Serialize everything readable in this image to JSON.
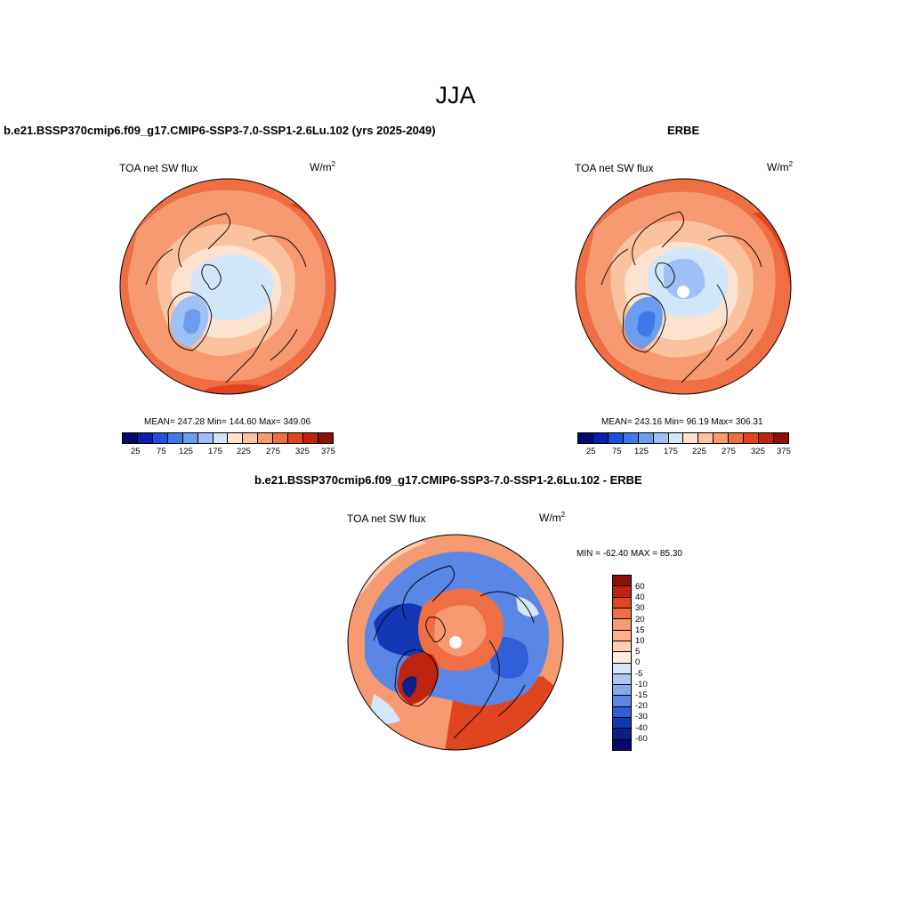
{
  "main_title": "JJA",
  "panels": [
    {
      "title": "b.e21.BSSP370cmip6.f09_g17.CMIP6-SSP3-7.0-SSP1-2.6Lu.102 (yrs 2025-2049)",
      "variable": "TOA net SW flux",
      "units_base": "W/m",
      "units_exp": "2",
      "stats": "MEAN= 247.28  Min= 144.60  Max= 349.06",
      "colorbar_ticks": [
        "25",
        "75",
        "125",
        "175",
        "225",
        "275",
        "325",
        "375"
      ]
    },
    {
      "title": "ERBE",
      "variable": "TOA net SW flux",
      "units_base": "W/m",
      "units_exp": "2",
      "stats": "MEAN= 243.16  Min=  96.19  Max= 306.31",
      "colorbar_ticks": [
        "25",
        "75",
        "125",
        "175",
        "225",
        "275",
        "325",
        "375"
      ]
    }
  ],
  "diff_panel": {
    "title": "b.e21.BSSP370cmip6.f09_g17.CMIP6-SSP3-7.0-SSP1-2.6Lu.102 - ERBE",
    "variable": "TOA net SW flux",
    "units_base": "W/m",
    "units_exp": "2",
    "stats": "MIN = -62.40 MAX =  85.30",
    "colorbar_ticks": [
      "60",
      "40",
      "30",
      "20",
      "15",
      "10",
      "5",
      "0",
      "-5",
      "-10",
      "-15",
      "-20",
      "-30",
      "-40",
      "-60"
    ]
  },
  "colors": {
    "abs_scale": [
      "#08086e",
      "#0a1fb0",
      "#1e4fd8",
      "#3f78e8",
      "#6a9cf0",
      "#9ec0f6",
      "#d2e6fb",
      "#fde3cf",
      "#fbc2a0",
      "#f79a72",
      "#f06e44",
      "#e04520",
      "#bf2410",
      "#8c0f08"
    ],
    "diff_scale": [
      "#8c0f08",
      "#bf2410",
      "#e04520",
      "#f06e44",
      "#f79a72",
      "#fbb08a",
      "#fdd0b0",
      "#fdeede",
      "#d6e6fb",
      "#aec8f6",
      "#86aaf0",
      "#5a86e6",
      "#2f5ed8",
      "#1438b4",
      "#0a1f88",
      "#06086a"
    ]
  }
}
